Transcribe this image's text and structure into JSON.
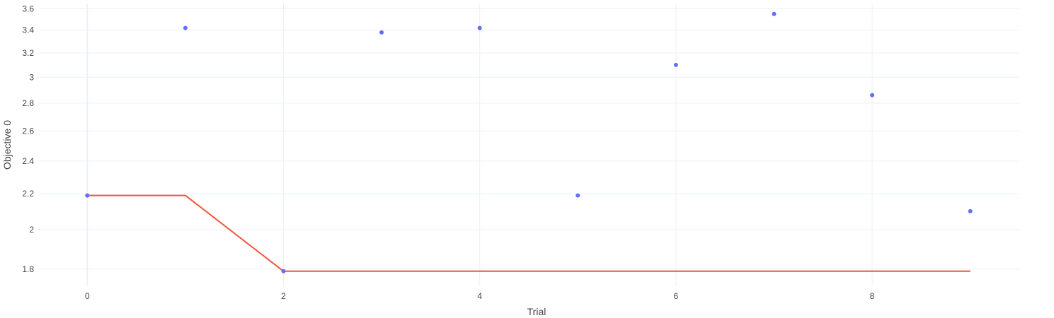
{
  "chart_data": {
    "type": "scatter",
    "xlabel": "Trial",
    "ylabel": "Objective 0",
    "y_scale": "log",
    "xlim": [
      -0.5,
      9.5
    ],
    "ylim": [
      1.72,
      3.65
    ],
    "grid": true,
    "x_ticks": [
      0,
      2,
      4,
      6,
      8
    ],
    "x_tick_labels": [
      "0",
      "2",
      "4",
      "6",
      "8"
    ],
    "y_ticks": [
      1.8,
      2.0,
      2.2,
      2.4,
      2.6,
      2.8,
      3.0,
      3.2,
      3.4,
      3.6
    ],
    "y_tick_labels": [
      "1.8",
      "2",
      "2.2",
      "2.4",
      "2.6",
      "2.8",
      "3",
      "3.2",
      "3.4",
      "3.6"
    ],
    "series": [
      {
        "kind": "scatter",
        "color": "#636efa",
        "x": [
          0,
          1,
          2,
          3,
          4,
          5,
          6,
          7,
          8,
          9
        ],
        "y": [
          2.19,
          3.42,
          1.79,
          3.38,
          3.42,
          2.19,
          3.1,
          3.55,
          2.86,
          2.1
        ]
      },
      {
        "kind": "line",
        "color": "#ef553b",
        "x": [
          0,
          1,
          2,
          3,
          4,
          5,
          6,
          7,
          8,
          9
        ],
        "y": [
          2.19,
          2.19,
          1.79,
          1.79,
          1.79,
          1.79,
          1.79,
          1.79,
          1.79,
          1.79
        ]
      }
    ]
  }
}
